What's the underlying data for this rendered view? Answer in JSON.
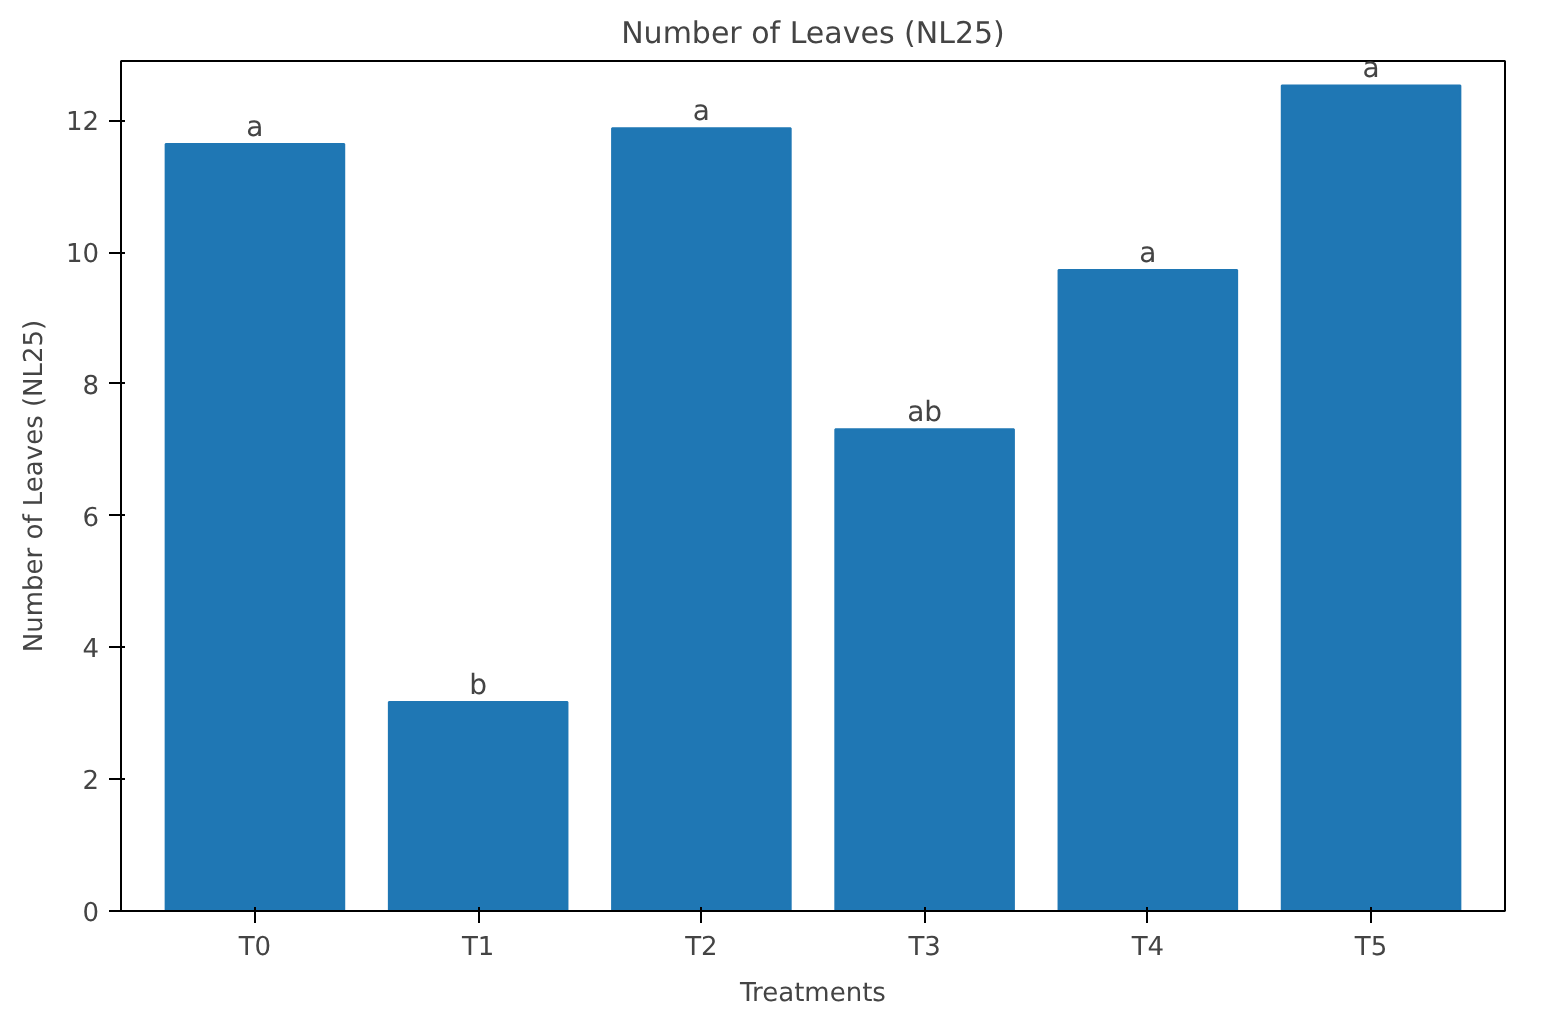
{
  "chart_data": {
    "type": "bar",
    "title": "Number of Leaves (NL25)",
    "xlabel": "Treatments",
    "ylabel": "Number of Leaves (NL25)",
    "categories": [
      "T0",
      "T1",
      "T2",
      "T3",
      "T4",
      "T5"
    ],
    "values": [
      11.64,
      3.17,
      11.88,
      7.31,
      9.73,
      12.53
    ],
    "color": "#1f77b4",
    "ylim": [
      0,
      12.9
    ],
    "yticks": [
      0,
      2,
      4,
      6,
      8,
      10,
      12
    ],
    "grid": false,
    "annotations": [
      {
        "text": "a",
        "x": "T0",
        "y": 11.64
      },
      {
        "text": "b",
        "x": "T1",
        "y": 3.17
      },
      {
        "text": "a",
        "x": "T2",
        "y": 11.88
      },
      {
        "text": "ab",
        "x": "T3",
        "y": 7.31
      },
      {
        "text": "a",
        "x": "T4",
        "y": 9.73
      },
      {
        "text": "a",
        "x": "T5",
        "y": 12.53
      }
    ]
  }
}
